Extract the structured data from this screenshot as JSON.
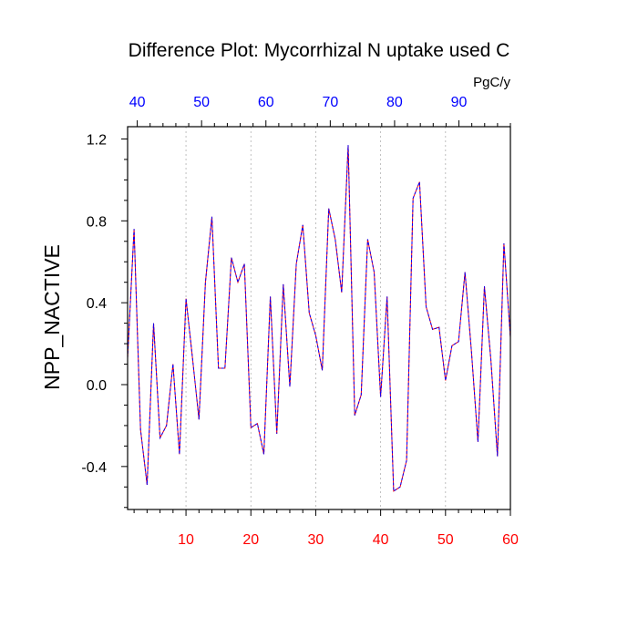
{
  "chart_data": {
    "type": "line",
    "title": "Difference Plot: Mycorrhizal N uptake used C",
    "units_label": "PgC/y",
    "ylabel": "NPP_NACTIVE",
    "xlim": [
      1,
      60
    ],
    "ylim": [
      -0.61,
      1.26
    ],
    "top_xlim": [
      38.5,
      98
    ],
    "x_ticks": [
      10,
      20,
      30,
      40,
      50,
      60
    ],
    "x_tick_labels": [
      "10",
      "20",
      "30",
      "40",
      "50",
      "60"
    ],
    "top_ticks": [
      40,
      50,
      60,
      70,
      80,
      90
    ],
    "top_tick_labels": [
      "40",
      "50",
      "60",
      "70",
      "80",
      "90"
    ],
    "y_ticks": [
      -0.4,
      0.0,
      0.4,
      0.8,
      1.2
    ],
    "y_tick_labels": [
      "-0.4",
      "0.0",
      "0.4",
      "0.8",
      "1.2"
    ],
    "grid": "vertical-dashed",
    "colors": {
      "bottom_axis": "#ff0000",
      "top_axis": "#0000ff",
      "line_solid": "#ff0000",
      "line_dash": "#0000ff"
    },
    "series": [
      {
        "x": [
          1,
          2,
          3,
          4,
          5,
          6,
          7,
          8,
          9,
          10,
          11,
          12,
          13,
          14,
          15,
          16,
          17,
          18,
          19,
          20,
          21,
          22,
          23,
          24,
          25,
          26,
          27,
          28,
          29,
          30,
          31,
          32,
          33,
          34,
          35,
          36,
          37,
          38,
          39,
          40,
          41,
          42,
          43,
          44,
          45,
          46,
          47,
          48,
          49,
          50,
          51,
          52,
          53,
          54,
          55,
          56,
          57,
          58,
          59,
          60
        ],
        "values": [
          0.13,
          0.76,
          -0.22,
          -0.49,
          0.3,
          -0.26,
          -0.2,
          0.1,
          -0.34,
          0.42,
          0.13,
          -0.17,
          0.5,
          0.82,
          0.08,
          0.08,
          0.62,
          0.5,
          0.59,
          -0.21,
          -0.19,
          -0.34,
          0.43,
          -0.24,
          0.49,
          -0.01,
          0.59,
          0.78,
          0.35,
          0.24,
          0.07,
          0.86,
          0.71,
          0.45,
          1.17,
          -0.15,
          -0.05,
          0.71,
          0.55,
          -0.06,
          0.43,
          -0.52,
          -0.5,
          -0.37,
          0.91,
          0.99,
          0.38,
          0.27,
          0.28,
          0.02,
          0.19,
          0.21,
          0.55,
          0.16,
          -0.28,
          0.48,
          0.12,
          -0.35,
          0.69,
          0.23
        ]
      }
    ]
  }
}
